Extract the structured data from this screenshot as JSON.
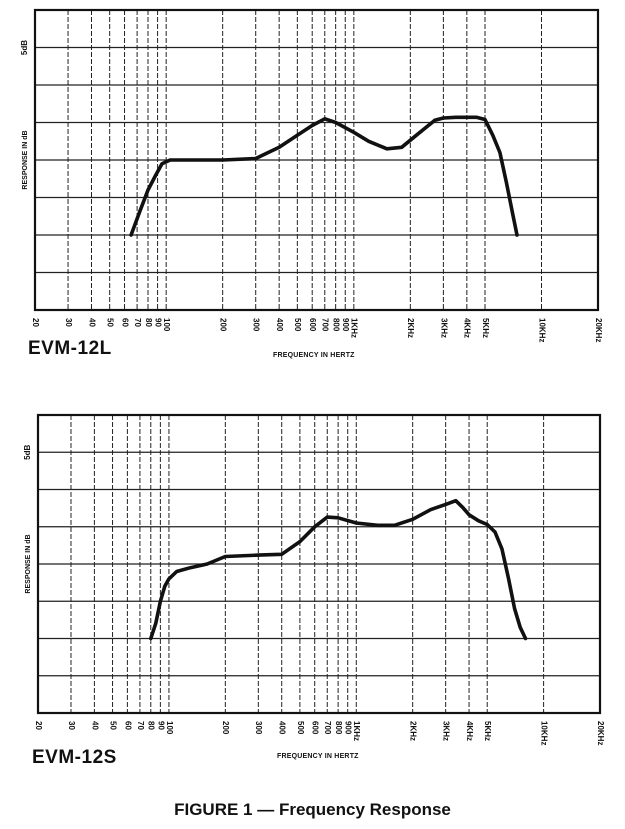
{
  "figure_caption": "FIGURE 1 — Frequency Response",
  "chart_data": [
    {
      "type": "line",
      "title": "EVM-12L",
      "xlabel": "FREQUENCY IN HERTZ",
      "ylabel": "RESPONSE IN dB",
      "scale_label": "5dB",
      "x_scale": "log",
      "xlim": [
        20,
        20000
      ],
      "ylim": [
        -25,
        15
      ],
      "grid": true,
      "x_tick_labels": [
        "20",
        "30",
        "40",
        "50",
        "60",
        "70",
        "80",
        "90",
        "100",
        "200",
        "300",
        "400",
        "500",
        "600",
        "700",
        "800",
        "900",
        "1KHz",
        "2KHz",
        "3KHz",
        "4KHz",
        "5KHz",
        "10KHz",
        "20KHz"
      ],
      "x_tick_values": [
        20,
        30,
        40,
        50,
        60,
        70,
        80,
        90,
        100,
        200,
        300,
        400,
        500,
        600,
        700,
        800,
        900,
        1000,
        2000,
        3000,
        4000,
        5000,
        10000,
        20000
      ],
      "series": [
        {
          "name": "",
          "x": [
            65,
            72,
            80,
            88,
            95,
            105,
            130,
            200,
            300,
            400,
            500,
            600,
            700,
            800,
            1000,
            1200,
            1500,
            1800,
            2200,
            2700,
            3000,
            3500,
            4000,
            4500,
            5000,
            5500,
            6000,
            6500,
            7000,
            7400
          ],
          "y": [
            -15,
            -12,
            -9,
            -7,
            -5.5,
            -5,
            -5,
            -5,
            -4.8,
            -3.3,
            -1.7,
            -0.4,
            0.5,
            0,
            -1.3,
            -2.5,
            -3.5,
            -3.3,
            -1.5,
            0.3,
            0.6,
            0.7,
            0.7,
            0.7,
            0.4,
            -1.7,
            -4,
            -8,
            -12,
            -15
          ]
        }
      ]
    },
    {
      "type": "line",
      "title": "EVM-12S",
      "xlabel": "FREQUENCY IN HERTZ",
      "ylabel": "RESPONSE IN dB",
      "scale_label": "5dB",
      "x_scale": "log",
      "xlim": [
        20,
        20000
      ],
      "ylim": [
        -25,
        15
      ],
      "grid": true,
      "x_tick_labels": [
        "20",
        "30",
        "40",
        "50",
        "60",
        "70",
        "80",
        "90",
        "100",
        "200",
        "300",
        "400",
        "500",
        "600",
        "700",
        "800",
        "900",
        "1KHz",
        "2KHz",
        "3KHz",
        "4KHz",
        "5KHz",
        "10KHz",
        "20KHz"
      ],
      "x_tick_values": [
        20,
        30,
        40,
        50,
        60,
        70,
        80,
        90,
        100,
        200,
        300,
        400,
        500,
        600,
        700,
        800,
        900,
        1000,
        2000,
        3000,
        4000,
        5000,
        10000,
        20000
      ],
      "series": [
        {
          "name": "",
          "x": [
            80,
            85,
            90,
            95,
            100,
            110,
            130,
            160,
            200,
            300,
            400,
            500,
            600,
            700,
            800,
            1000,
            1300,
            1600,
            2000,
            2500,
            3000,
            3400,
            3700,
            4000,
            4500,
            5000,
            5500,
            6000,
            6500,
            7000,
            7500,
            8000
          ],
          "y": [
            -15,
            -13,
            -10,
            -8,
            -7,
            -6,
            -5.5,
            -5,
            -4,
            -3.8,
            -3.7,
            -2,
            0,
            1.3,
            1.2,
            0.5,
            0.2,
            0.2,
            1,
            2.3,
            3,
            3.5,
            2.6,
            1.6,
            0.8,
            0.3,
            -0.7,
            -3,
            -7,
            -11,
            -13.5,
            -15
          ]
        }
      ]
    }
  ]
}
